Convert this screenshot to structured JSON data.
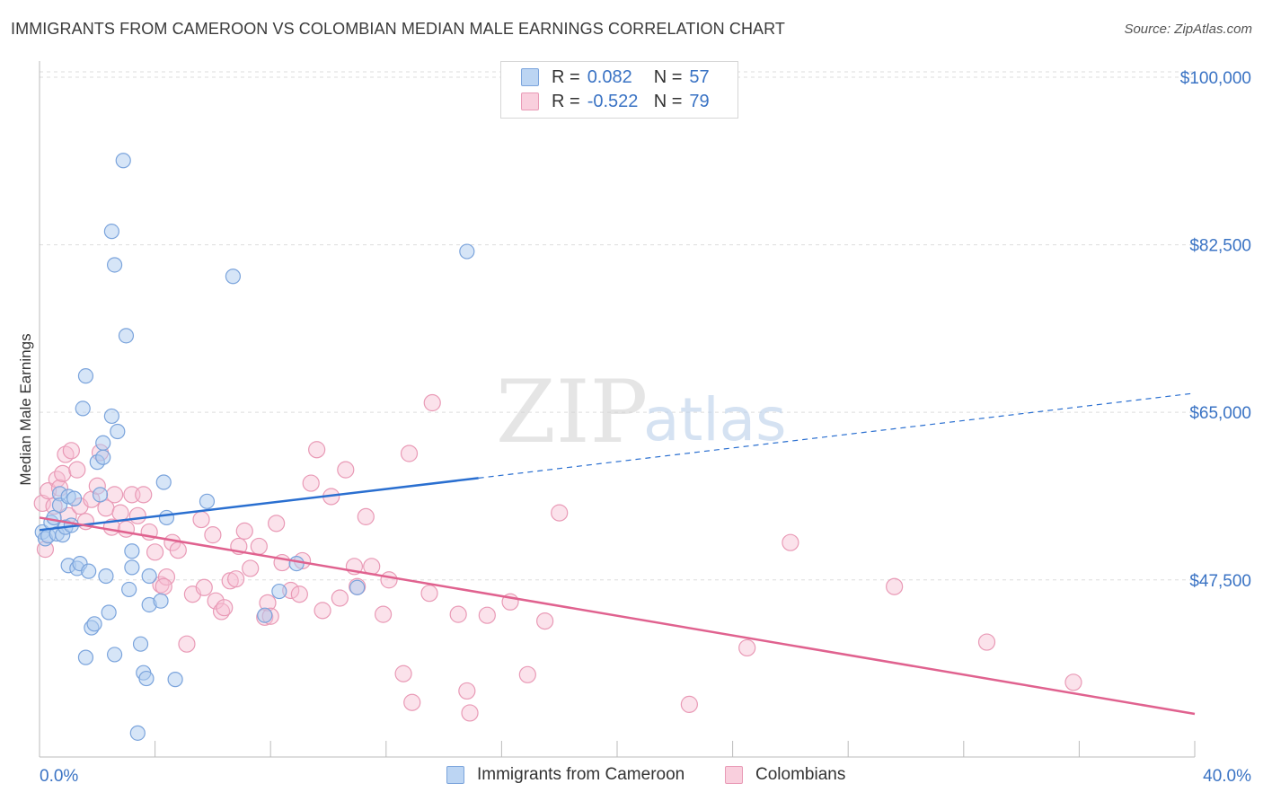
{
  "title": "IMMIGRANTS FROM CAMEROON VS COLOMBIAN MEDIAN MALE EARNINGS CORRELATION CHART",
  "source": "Source: ZipAtlas.com",
  "watermark": {
    "zip": "ZIP",
    "atlas": "atlas"
  },
  "legend": {
    "rows": [
      {
        "r_label": "R =",
        "r_value": "0.082",
        "n_label": "N =",
        "n_value": "57"
      },
      {
        "r_label": "R =",
        "r_value": "-0.522",
        "n_label": "N =",
        "n_value": "79"
      }
    ]
  },
  "bottom_legend": {
    "items": [
      "Immigrants from Cameroon",
      "Colombians"
    ]
  },
  "colors": {
    "blue_fill": "#aecbef",
    "blue_stroke": "#7ba4dc",
    "blue_line": "#2a6fd0",
    "pink_fill": "#f6bfd2",
    "pink_stroke": "#e99ab6",
    "pink_line": "#e0628f",
    "axis_text": "#3a73c4",
    "grid": "#dddddd"
  },
  "chart_data": {
    "type": "scatter",
    "title": "IMMIGRANTS FROM CAMEROON VS COLOMBIAN MEDIAN MALE EARNINGS CORRELATION CHART",
    "xlabel": "",
    "ylabel": "Median Male Earnings",
    "xlim": [
      0,
      40
    ],
    "ylim": [
      29000,
      101500
    ],
    "x_tick_labels": [
      "0.0%",
      "40.0%"
    ],
    "y_ticks": [
      47500,
      65000,
      82500,
      100000
    ],
    "y_tick_labels": [
      "$47,500",
      "$65,000",
      "$82,500",
      "$100,000"
    ],
    "grid": true,
    "series": [
      {
        "name": "Immigrants from Cameroon",
        "trend": {
          "x0": 0,
          "y0": 52700,
          "x1": 40,
          "y1": 67000,
          "solid_until": 15.2
        },
        "points": [
          [
            0.1,
            52500
          ],
          [
            0.2,
            51800
          ],
          [
            0.3,
            52100
          ],
          [
            0.4,
            53500
          ],
          [
            0.5,
            54000
          ],
          [
            0.6,
            52300
          ],
          [
            0.7,
            56500
          ],
          [
            0.7,
            55300
          ],
          [
            0.8,
            52200
          ],
          [
            0.9,
            53000
          ],
          [
            1.0,
            56200
          ],
          [
            1.1,
            53200
          ],
          [
            1.2,
            56000
          ],
          [
            1.0,
            49000
          ],
          [
            1.3,
            48700
          ],
          [
            1.4,
            49200
          ],
          [
            1.5,
            65400
          ],
          [
            1.6,
            39400
          ],
          [
            1.6,
            68800
          ],
          [
            1.7,
            48400
          ],
          [
            1.8,
            42500
          ],
          [
            1.9,
            42900
          ],
          [
            2.0,
            59800
          ],
          [
            2.1,
            56400
          ],
          [
            2.2,
            61800
          ],
          [
            2.2,
            60300
          ],
          [
            2.4,
            44100
          ],
          [
            2.3,
            47900
          ],
          [
            2.5,
            83900
          ],
          [
            2.5,
            64600
          ],
          [
            2.6,
            39700
          ],
          [
            2.6,
            80400
          ],
          [
            2.7,
            63000
          ],
          [
            2.9,
            91300
          ],
          [
            3.0,
            73000
          ],
          [
            3.1,
            46500
          ],
          [
            3.2,
            50500
          ],
          [
            3.2,
            48800
          ],
          [
            3.4,
            31500
          ],
          [
            3.5,
            40800
          ],
          [
            3.6,
            37800
          ],
          [
            3.7,
            37200
          ],
          [
            3.8,
            47900
          ],
          [
            3.8,
            44900
          ],
          [
            4.2,
            45300
          ],
          [
            4.3,
            57700
          ],
          [
            4.4,
            54000
          ],
          [
            4.7,
            37100
          ],
          [
            5.8,
            55700
          ],
          [
            6.7,
            79200
          ],
          [
            7.8,
            43800
          ],
          [
            8.3,
            46300
          ],
          [
            8.9,
            49200
          ],
          [
            11.0,
            46700
          ],
          [
            14.8,
            81800
          ]
        ]
      },
      {
        "name": "Colombians",
        "trend": {
          "x0": 0,
          "y0": 54000,
          "x1": 40,
          "y1": 33500
        },
        "points": [
          [
            0.1,
            55500
          ],
          [
            0.2,
            50700
          ],
          [
            0.3,
            56800
          ],
          [
            0.5,
            55200
          ],
          [
            0.6,
            58000
          ],
          [
            0.7,
            57100
          ],
          [
            0.8,
            58600
          ],
          [
            0.9,
            60600
          ],
          [
            1.0,
            54200
          ],
          [
            1.1,
            61000
          ],
          [
            1.3,
            59000
          ],
          [
            1.4,
            55200
          ],
          [
            1.6,
            53600
          ],
          [
            1.8,
            55900
          ],
          [
            2.0,
            57300
          ],
          [
            2.1,
            60800
          ],
          [
            2.3,
            55000
          ],
          [
            2.5,
            53000
          ],
          [
            2.6,
            56400
          ],
          [
            2.8,
            54500
          ],
          [
            3.0,
            52800
          ],
          [
            3.2,
            56400
          ],
          [
            3.4,
            54200
          ],
          [
            3.6,
            56400
          ],
          [
            3.8,
            52500
          ],
          [
            4.0,
            50400
          ],
          [
            4.2,
            47000
          ],
          [
            4.4,
            47800
          ],
          [
            4.6,
            51400
          ],
          [
            4.8,
            50600
          ],
          [
            5.1,
            40800
          ],
          [
            5.3,
            46000
          ],
          [
            5.6,
            53800
          ],
          [
            5.7,
            46700
          ],
          [
            6.0,
            52200
          ],
          [
            6.1,
            45300
          ],
          [
            6.3,
            44200
          ],
          [
            6.4,
            44600
          ],
          [
            6.6,
            47400
          ],
          [
            6.8,
            47600
          ],
          [
            6.9,
            51000
          ],
          [
            7.1,
            52600
          ],
          [
            7.3,
            48700
          ],
          [
            7.6,
            51000
          ],
          [
            7.8,
            43600
          ],
          [
            7.9,
            45100
          ],
          [
            8.2,
            53400
          ],
          [
            8.4,
            49300
          ],
          [
            8.7,
            46400
          ],
          [
            9.0,
            46000
          ],
          [
            9.1,
            49500
          ],
          [
            9.4,
            57600
          ],
          [
            9.6,
            61100
          ],
          [
            9.8,
            44300
          ],
          [
            10.1,
            56200
          ],
          [
            10.4,
            45600
          ],
          [
            10.6,
            59000
          ],
          [
            10.9,
            48900
          ],
          [
            11.0,
            46800
          ],
          [
            11.3,
            54100
          ],
          [
            11.5,
            48900
          ],
          [
            11.9,
            43900
          ],
          [
            12.1,
            47500
          ],
          [
            12.6,
            37700
          ],
          [
            12.8,
            60700
          ],
          [
            12.9,
            34700
          ],
          [
            13.5,
            46100
          ],
          [
            13.6,
            66000
          ],
          [
            14.5,
            43900
          ],
          [
            14.8,
            35900
          ],
          [
            14.9,
            33600
          ],
          [
            15.5,
            43800
          ],
          [
            16.3,
            45200
          ],
          [
            16.9,
            37600
          ],
          [
            17.5,
            43200
          ],
          [
            18.0,
            54500
          ],
          [
            22.5,
            34500
          ],
          [
            24.5,
            40400
          ],
          [
            26.0,
            51400
          ],
          [
            29.6,
            46800
          ],
          [
            32.8,
            41000
          ],
          [
            35.8,
            36800
          ],
          [
            8.0,
            43700
          ],
          [
            4.3,
            46800
          ]
        ]
      }
    ]
  }
}
